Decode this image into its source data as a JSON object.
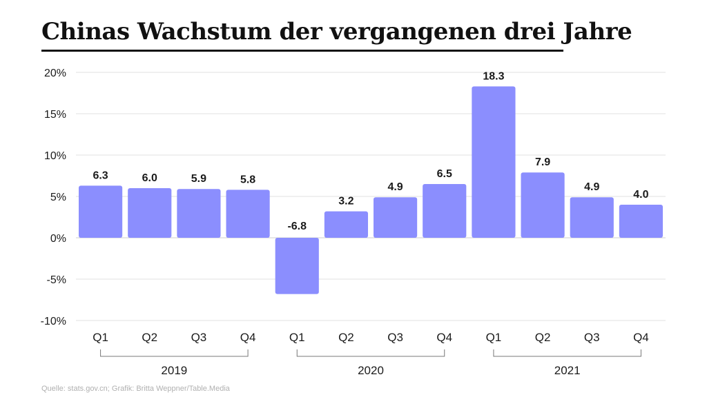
{
  "title": "Chinas Wachstum der vergangenen drei Jahre",
  "source": "Quelle: stats.gov.cn; Grafik: Britta Weppner/Table.Media",
  "colors": {
    "bar": "#8b8efe",
    "grid": "#e2e2e2",
    "axis": "#cfcfcf",
    "text": "#1a1a1a",
    "bracket": "#777777"
  },
  "chart_data": {
    "type": "bar",
    "title": "Chinas Wachstum der vergangenen drei Jahre",
    "xlabel": "",
    "ylabel": "",
    "categories": [
      "Q1",
      "Q2",
      "Q3",
      "Q4",
      "Q1",
      "Q2",
      "Q3",
      "Q4",
      "Q1",
      "Q2",
      "Q3",
      "Q4"
    ],
    "values": [
      6.3,
      6.0,
      5.9,
      5.8,
      -6.8,
      3.2,
      4.9,
      6.5,
      18.3,
      7.9,
      4.9,
      4.0
    ],
    "data_labels": [
      "6.3",
      "6.0",
      "5.9",
      "5.8",
      "-6.8",
      "3.2",
      "4.9",
      "6.5",
      "18.3",
      "7.9",
      "4.9",
      "4.0"
    ],
    "groups": [
      {
        "label": "2019",
        "start": 0,
        "end": 3
      },
      {
        "label": "2020",
        "start": 4,
        "end": 7
      },
      {
        "label": "2021",
        "start": 8,
        "end": 11
      }
    ],
    "ylim": [
      -10,
      20
    ],
    "yticks": [
      -10,
      -5,
      0,
      5,
      10,
      15,
      20
    ],
    "ytick_labels": [
      "-10%",
      "-5%",
      "0%",
      "5%",
      "10%",
      "15%",
      "20%"
    ],
    "grid": true
  }
}
